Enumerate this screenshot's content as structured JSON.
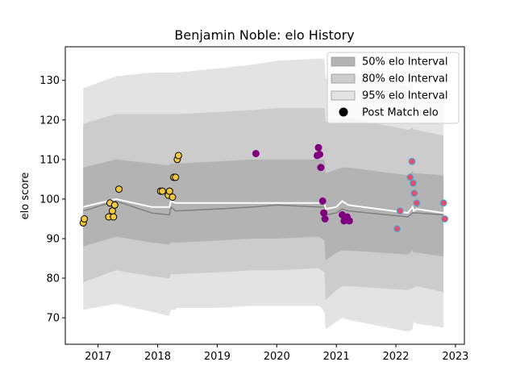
{
  "chart_data": {
    "type": "scatter",
    "title": "Benjamin Noble: elo History",
    "xlabel": "",
    "ylabel": "elo score",
    "xlim": [
      2016.45,
      2023.15
    ],
    "ylim": [
      63.3,
      138.5
    ],
    "xticks": [
      2017,
      2018,
      2019,
      2020,
      2021,
      2022,
      2023
    ],
    "yticks": [
      70,
      80,
      90,
      100,
      110,
      120,
      130
    ],
    "grid": false,
    "legend_position": "top-right",
    "legend": [
      {
        "label": "50% elo Interval",
        "color": "#b3b3b3"
      },
      {
        "label": "80% elo Interval",
        "color": "#cccccc"
      },
      {
        "label": "95% elo Interval",
        "color": "#e3e3e3"
      },
      {
        "label": "Post Match elo",
        "color": "#000000"
      }
    ],
    "bands": {
      "x": [
        2016.75,
        2017.3,
        2017.9,
        2018.2,
        2018.22,
        2018.3,
        2018.32,
        2019.0,
        2019.6,
        2020.0,
        2020.7,
        2020.75,
        2020.8,
        2020.82,
        2021.0,
        2021.1,
        2021.2,
        2022.2,
        2022.28,
        2022.3,
        2022.35,
        2022.8
      ],
      "p95_upper": [
        128,
        131,
        132,
        132,
        132,
        132,
        132,
        133,
        134,
        135,
        135.5,
        135.5,
        135.5,
        130.5,
        131,
        131.5,
        132,
        128.5,
        129.5,
        127,
        126.5,
        125
      ],
      "p95_lower": [
        72,
        73.5,
        71.5,
        70.5,
        72,
        72,
        72.5,
        72.5,
        73,
        73,
        73,
        72.5,
        71.5,
        67,
        69,
        70,
        69.5,
        66.5,
        67,
        69,
        68.5,
        67.5
      ],
      "p80_upper": [
        119,
        121.5,
        121.5,
        121.5,
        121.5,
        121.5,
        121.5,
        122,
        122.5,
        123,
        123,
        123,
        123,
        119.5,
        120,
        120.5,
        120.5,
        117.5,
        118,
        117.5,
        117.5,
        116
      ],
      "p80_lower": [
        79,
        82,
        80.5,
        80,
        81,
        81,
        81,
        81.5,
        82,
        82,
        82.5,
        82,
        81.5,
        74.5,
        77,
        78,
        78,
        77,
        77.5,
        77.5,
        78,
        76.5
      ],
      "p50_upper": [
        108,
        110,
        109,
        108.5,
        109,
        109,
        109,
        109.5,
        110,
        110,
        110,
        110,
        110,
        106.5,
        107.5,
        108,
        108,
        106,
        107,
        106.5,
        106.5,
        106
      ],
      "p50_lower": [
        88,
        90.5,
        89,
        88.5,
        89,
        89,
        89,
        89.5,
        90,
        90,
        90.5,
        90,
        89.5,
        84.5,
        86.5,
        87,
        87,
        86,
        87,
        86.5,
        86.5,
        85.5
      ],
      "mean": [
        98,
        100,
        98,
        98,
        99.5,
        99,
        99,
        99,
        99,
        99,
        99,
        99,
        99,
        97.5,
        98,
        99.5,
        98.5,
        96.5,
        98,
        97,
        97.5,
        96.5
      ],
      "median": [
        97,
        99.5,
        96.5,
        96,
        98,
        97,
        97,
        97.5,
        98,
        98.5,
        98,
        98,
        98,
        96,
        96.5,
        97.5,
        97,
        95.5,
        96.5,
        96.5,
        96.5,
        96
      ]
    },
    "series": [
      {
        "color": "#f0c840",
        "edge": "#000000",
        "points": [
          {
            "x": 2016.75,
            "y": 94
          },
          {
            "x": 2016.77,
            "y": 95
          },
          {
            "x": 2017.18,
            "y": 95.5
          },
          {
            "x": 2017.2,
            "y": 99
          },
          {
            "x": 2017.24,
            "y": 97
          },
          {
            "x": 2017.26,
            "y": 95.5
          },
          {
            "x": 2017.28,
            "y": 98.5
          },
          {
            "x": 2017.35,
            "y": 102.5
          },
          {
            "x": 2018.05,
            "y": 102
          },
          {
            "x": 2018.08,
            "y": 102
          },
          {
            "x": 2018.18,
            "y": 101
          },
          {
            "x": 2018.2,
            "y": 102
          },
          {
            "x": 2018.25,
            "y": 100.5
          },
          {
            "x": 2018.27,
            "y": 105.5
          },
          {
            "x": 2018.3,
            "y": 105.5
          },
          {
            "x": 2018.33,
            "y": 110
          },
          {
            "x": 2018.35,
            "y": 111
          }
        ]
      },
      {
        "color": "#800080",
        "edge": "#800080",
        "points": [
          {
            "x": 2019.65,
            "y": 111.5
          },
          {
            "x": 2020.68,
            "y": 111
          },
          {
            "x": 2020.7,
            "y": 113
          },
          {
            "x": 2020.72,
            "y": 111.3
          },
          {
            "x": 2020.74,
            "y": 108
          },
          {
            "x": 2020.77,
            "y": 99.5
          },
          {
            "x": 2020.79,
            "y": 96.5
          },
          {
            "x": 2020.81,
            "y": 95
          },
          {
            "x": 2021.1,
            "y": 96
          },
          {
            "x": 2021.13,
            "y": 94.5
          },
          {
            "x": 2021.18,
            "y": 95.5
          },
          {
            "x": 2021.22,
            "y": 94.5
          }
        ]
      },
      {
        "color": "#e05070",
        "edge": "#40b8d8",
        "points": [
          {
            "x": 2022.02,
            "y": 92.5
          },
          {
            "x": 2022.07,
            "y": 97
          },
          {
            "x": 2022.24,
            "y": 105.5
          },
          {
            "x": 2022.27,
            "y": 109.5
          },
          {
            "x": 2022.29,
            "y": 104
          },
          {
            "x": 2022.31,
            "y": 101.5
          },
          {
            "x": 2022.35,
            "y": 99
          },
          {
            "x": 2022.8,
            "y": 99
          },
          {
            "x": 2022.82,
            "y": 95
          }
        ]
      }
    ]
  }
}
